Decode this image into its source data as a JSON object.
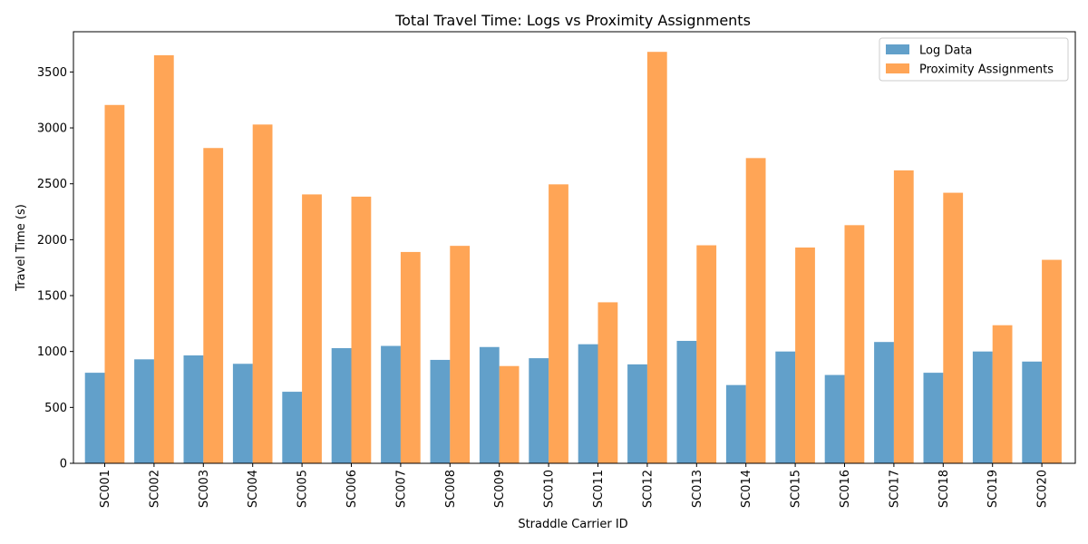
{
  "chart_data": {
    "type": "bar",
    "title": "Total Travel Time: Logs vs Proximity Assignments",
    "xlabel": "Straddle Carrier ID",
    "ylabel": "Travel Time (s)",
    "ylim": [
      0,
      3860
    ],
    "yticks": [
      0,
      500,
      1000,
      1500,
      2000,
      2500,
      3000,
      3500
    ],
    "grid": false,
    "legend_position": "top-right",
    "categories": [
      "SC001",
      "SC002",
      "SC003",
      "SC004",
      "SC005",
      "SC006",
      "SC007",
      "SC008",
      "SC009",
      "SC010",
      "SC011",
      "SC012",
      "SC013",
      "SC014",
      "SC015",
      "SC016",
      "SC017",
      "SC018",
      "SC019",
      "SC020"
    ],
    "series": [
      {
        "name": "Log Data",
        "color": "#1f77b4",
        "values": [
          810,
          930,
          965,
          890,
          640,
          1030,
          1050,
          925,
          1040,
          940,
          1065,
          885,
          1095,
          700,
          1000,
          790,
          1085,
          810,
          1000,
          910
        ]
      },
      {
        "name": "Proximity Assignments",
        "color": "#ff7f0e",
        "values": [
          3205,
          3650,
          2820,
          3030,
          2405,
          2385,
          1890,
          1945,
          870,
          2495,
          1440,
          3680,
          1950,
          2730,
          1930,
          2130,
          2620,
          2420,
          1235,
          1820
        ]
      }
    ]
  }
}
